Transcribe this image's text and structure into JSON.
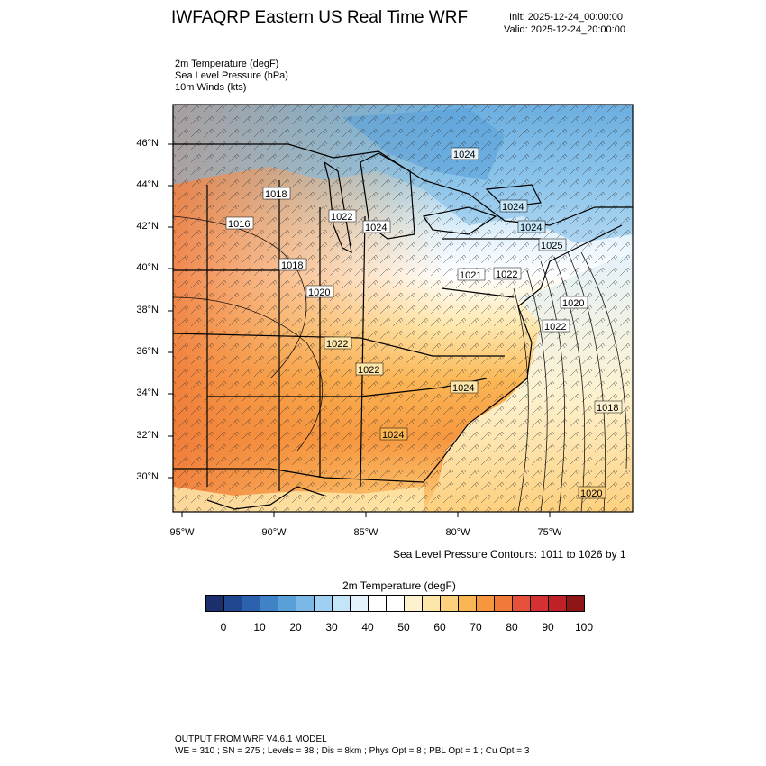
{
  "header": {
    "title": "IWFAQRP Eastern US Real Time WRF",
    "init": "Init: 2025-12-24_00:00:00",
    "valid": "Valid: 2025-12-24_20:00:00"
  },
  "fields": [
    "2m Temperature   (degF)",
    "Sea Level Pressure   (hPa)",
    "10m Winds   (kts)"
  ],
  "map": {
    "lat_labels": [
      "46°N",
      "44°N",
      "42°N",
      "40°N",
      "38°N",
      "36°N",
      "34°N",
      "32°N",
      "30°N"
    ],
    "lon_labels": [
      "95°W",
      "90°W",
      "85°W",
      "80°W",
      "75°W"
    ],
    "pressure_labels": [
      "1024",
      "1018",
      "1022",
      "1024",
      "1016",
      "1024",
      "1024",
      "1025",
      "1018",
      "1020",
      "1021",
      "1022",
      "1020",
      "1022",
      "1022",
      "1022",
      "1024",
      "1018",
      "1024",
      "1020"
    ],
    "contour_note": "Sea Level Pressure Contours: 1011 to 1026 by 1"
  },
  "colorbar": {
    "title": "2m Temperature  (degF)",
    "ticks": [
      "0",
      "10",
      "20",
      "30",
      "40",
      "50",
      "60",
      "70",
      "80",
      "90",
      "100"
    ],
    "colors": [
      "#1a2f6b",
      "#21478f",
      "#2c62ad",
      "#3f82c6",
      "#5aa0d8",
      "#7ab9e6",
      "#9fd0f1",
      "#c4e4f8",
      "#e4f2fb",
      "#ffffff",
      "#ffffff",
      "#fdf2cf",
      "#fde6a9",
      "#fdd07e",
      "#fbb654",
      "#f6963f",
      "#ef7a3a",
      "#e5503a",
      "#d43232",
      "#bf2226",
      "#8f1516"
    ]
  },
  "footer": {
    "line1": "OUTPUT FROM WRF V4.6.1 MODEL",
    "line2": "WE = 310 ; SN = 275 ; Levels = 38 ; Dis = 8km ; Phys Opt = 8 ; PBL Opt = 1 ; Cu Opt = 3"
  }
}
